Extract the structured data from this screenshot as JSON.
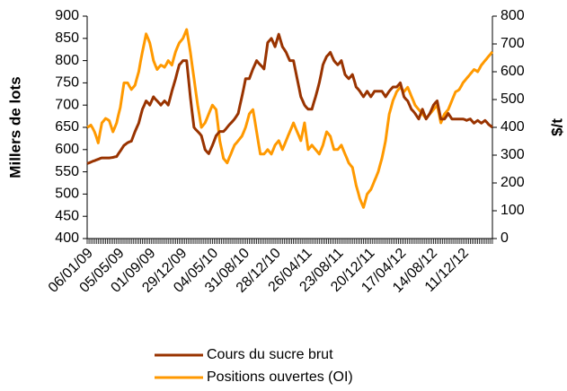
{
  "chart_data": {
    "type": "line",
    "y_label": "Millers de lots",
    "y2_label": "$/t",
    "ylim": [
      400,
      900
    ],
    "yticks": [
      400,
      450,
      500,
      550,
      600,
      650,
      700,
      750,
      800,
      850,
      900
    ],
    "y2lim": [
      0,
      800
    ],
    "y2ticks": [
      0,
      100,
      200,
      300,
      400,
      500,
      600,
      700,
      800
    ],
    "categories": [
      "06/01/09",
      null,
      null,
      null,
      null,
      null,
      null,
      null,
      null,
      null,
      null,
      null,
      null,
      null,
      null,
      null,
      null,
      "05/05/09",
      null,
      null,
      null,
      null,
      null,
      null,
      null,
      null,
      null,
      null,
      null,
      null,
      null,
      null,
      null,
      null,
      "01/09/09",
      null,
      null,
      null,
      null,
      null,
      null,
      null,
      null,
      null,
      null,
      null,
      null,
      null,
      null,
      null,
      null,
      "29/12/09",
      null,
      null,
      null,
      null,
      null,
      null,
      null,
      null,
      null,
      null,
      null,
      null,
      null,
      null,
      null,
      null,
      "04/05/10",
      null,
      null,
      null,
      null,
      null,
      null,
      null,
      null,
      null,
      null,
      null,
      null,
      null,
      null,
      null,
      null,
      "31/08/10",
      null,
      null,
      null,
      null,
      null,
      null,
      null,
      null,
      null,
      null,
      null,
      null,
      null,
      null,
      null,
      null,
      "28/12/10",
      null,
      null,
      null,
      null,
      null,
      null,
      null,
      null,
      null,
      null,
      null,
      null,
      null,
      null,
      null,
      null,
      "26/04/11",
      null,
      null,
      null,
      null,
      null,
      null,
      null,
      null,
      null,
      null,
      null,
      null,
      null,
      null,
      null,
      null,
      "23/08/11",
      null,
      null,
      null,
      null,
      null,
      null,
      null,
      null,
      null,
      null,
      null,
      null,
      null,
      null,
      null,
      null,
      "20/12/11",
      null,
      null,
      null,
      null,
      null,
      null,
      null,
      null,
      null,
      null,
      null,
      null,
      null,
      null,
      null,
      null,
      "17/04/12",
      null,
      null,
      null,
      null,
      null,
      null,
      null,
      null,
      null,
      null,
      null,
      null,
      null,
      null,
      null,
      null,
      "14/08/12",
      null,
      null,
      null,
      null,
      null,
      null,
      null,
      null,
      null,
      null,
      null,
      null,
      null,
      null,
      null,
      null,
      "11/12/12",
      null,
      null,
      null,
      null,
      null,
      null,
      null,
      null,
      null,
      null,
      null,
      null,
      null,
      null,
      null,
      null
    ],
    "series": [
      {
        "name": "Cours du sucre brut",
        "color": "#993300",
        "axis": "y2",
        "values": [
          270,
          272,
          275,
          278,
          280,
          283,
          285,
          288,
          290,
          290,
          290,
          290,
          290,
          291,
          292,
          294,
          295,
          305,
          315,
          325,
          335,
          340,
          345,
          348,
          350,
          368,
          385,
          400,
          415,
          440,
          465,
          480,
          495,
          488,
          480,
          495,
          510,
          502,
          495,
          488,
          480,
          488,
          495,
          488,
          480,
          505,
          530,
          552,
          575,
          600,
          625,
          632,
          640,
          640,
          640,
          575,
          510,
          455,
          400,
          392,
          385,
          378,
          370,
          345,
          320,
          312,
          305,
          320,
          335,
          352,
          370,
          378,
          385,
          385,
          385,
          392,
          400,
          408,
          415,
          422,
          430,
          440,
          450,
          480,
          510,
          542,
          575,
          575,
          575,
          592,
          610,
          625,
          640,
          632,
          625,
          618,
          610,
          658,
          705,
          712,
          720,
          705,
          690,
          712,
          735,
          712,
          690,
          680,
          670,
          655,
          640,
          640,
          640,
          608,
          575,
          542,
          510,
          495,
          480,
          472,
          465,
          465,
          465,
          488,
          510,
          535,
          560,
          592,
          625,
          640,
          655,
          662,
          670,
          655,
          640,
          632,
          625,
          632,
          640,
          615,
          590,
          582,
          575,
          582,
          590,
          568,
          545,
          538,
          530,
          520,
          510,
          520,
          530,
          520,
          510,
          520,
          530,
          530,
          530,
          530,
          530,
          520,
          510,
          520,
          530,
          538,
          545,
          545,
          545,
          552,
          560,
          535,
          510,
          502,
          495,
          480,
          465,
          458,
          450,
          440,
          430,
          448,
          465,
          448,
          430,
          440,
          450,
          465,
          480,
          488,
          495,
          462,
          430,
          430,
          430,
          440,
          450,
          440,
          430,
          430,
          430,
          430,
          430,
          430,
          430,
          428,
          425,
          428,
          430,
          422,
          415,
          420,
          425,
          420,
          415,
          420,
          425,
          418,
          410,
          405,
          400
        ]
      },
      {
        "name": "Positions ouvertes (OI)",
        "color": "#ff9900",
        "values": [
          650,
          652,
          655,
          648,
          640,
          628,
          615,
          638,
          660,
          665,
          670,
          668,
          665,
          652,
          640,
          650,
          660,
          678,
          695,
          722,
          750,
          750,
          750,
          742,
          735,
          740,
          745,
          760,
          775,
          798,
          820,
          840,
          860,
          850,
          840,
          820,
          800,
          790,
          780,
          785,
          790,
          788,
          785,
          792,
          800,
          795,
          790,
          805,
          820,
          830,
          840,
          845,
          850,
          860,
          870,
          845,
          820,
          790,
          760,
          730,
          700,
          675,
          650,
          655,
          660,
          670,
          680,
          690,
          700,
          695,
          690,
          655,
          620,
          600,
          580,
          575,
          570,
          580,
          590,
          600,
          610,
          615,
          620,
          625,
          630,
          640,
          650,
          665,
          680,
          685,
          690,
          665,
          640,
          615,
          590,
          590,
          590,
          595,
          600,
          595,
          590,
          600,
          610,
          615,
          620,
          610,
          600,
          610,
          620,
          630,
          640,
          650,
          660,
          650,
          640,
          630,
          620,
          640,
          660,
          630,
          600,
          605,
          610,
          605,
          600,
          595,
          590,
          600,
          610,
          625,
          640,
          635,
          630,
          615,
          600,
          600,
          600,
          605,
          610,
          600,
          590,
          580,
          570,
          565,
          560,
          540,
          520,
          505,
          490,
          480,
          470,
          485,
          500,
          505,
          510,
          520,
          530,
          540,
          550,
          565,
          580,
          600,
          620,
          650,
          680,
          695,
          710,
          720,
          730,
          735,
          740,
          735,
          730,
          735,
          740,
          730,
          720,
          710,
          700,
          695,
          690,
          685,
          680,
          675,
          670,
          675,
          680,
          685,
          690,
          695,
          700,
          680,
          660,
          670,
          680,
          685,
          690,
          700,
          710,
          720,
          730,
          732,
          735,
          742,
          750,
          755,
          760,
          765,
          770,
          775,
          780,
          778,
          775,
          782,
          790,
          795,
          800,
          805,
          810,
          815,
          820
        ]
      }
    ]
  }
}
